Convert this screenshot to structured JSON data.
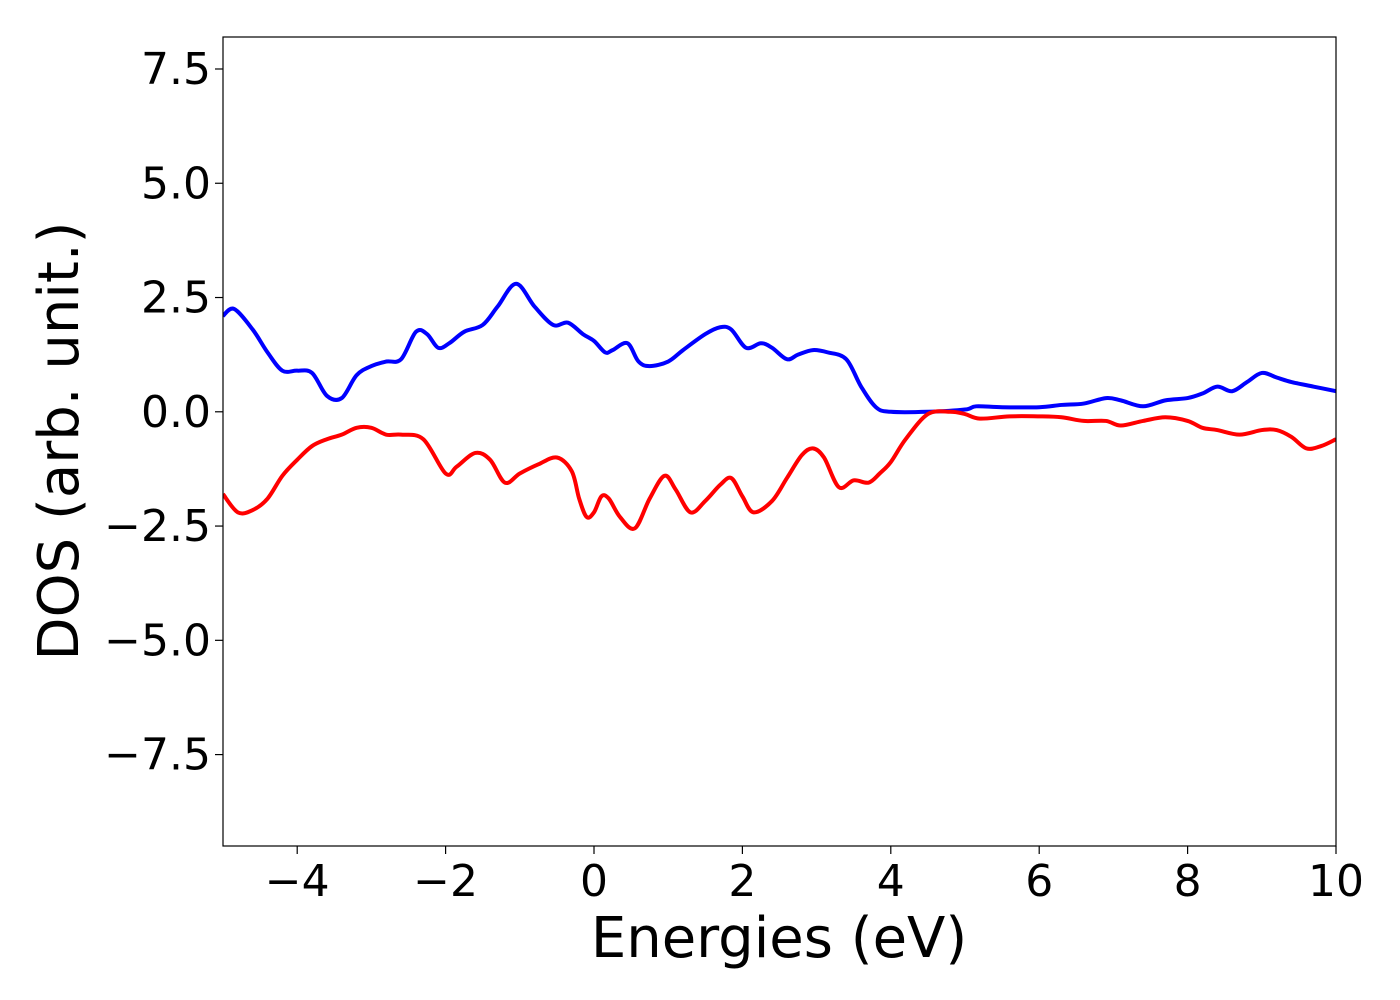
{
  "chart_data": {
    "type": "line",
    "xlabel": "Energies (eV)",
    "ylabel": "DOS (arb. unit.)",
    "xlim": [
      -5,
      10
    ],
    "ylim": [
      -9.5,
      8.2
    ],
    "xticks": [
      -4,
      -2,
      0,
      2,
      4,
      6,
      8,
      10
    ],
    "xtick_labels": [
      "−4",
      "−2",
      "0",
      "2",
      "4",
      "6",
      "8",
      "10"
    ],
    "yticks": [
      7.5,
      5.0,
      2.5,
      0.0,
      -2.5,
      -5.0,
      -7.5
    ],
    "ytick_labels": [
      "7.5",
      "5.0",
      "2.5",
      "0.0",
      "−2.5",
      "−5.0",
      "−7.5"
    ],
    "grid": false,
    "series": [
      {
        "color": "#0000ff",
        "x": [
          -5.0,
          -4.85,
          -4.6,
          -4.4,
          -4.2,
          -4.0,
          -3.8,
          -3.6,
          -3.4,
          -3.2,
          -3.0,
          -2.8,
          -2.6,
          -2.4,
          -2.25,
          -2.1,
          -1.95,
          -1.75,
          -1.5,
          -1.3,
          -1.05,
          -0.8,
          -0.55,
          -0.35,
          -0.15,
          0.0,
          0.15,
          0.25,
          0.45,
          0.6,
          0.75,
          1.0,
          1.2,
          1.5,
          1.7,
          1.85,
          2.05,
          2.25,
          2.4,
          2.6,
          2.75,
          2.95,
          3.15,
          3.4,
          3.6,
          3.8,
          4.0,
          4.5,
          5.0,
          5.15,
          5.5,
          6.0,
          6.3,
          6.6,
          6.9,
          7.1,
          7.4,
          7.7,
          8.0,
          8.2,
          8.4,
          8.6,
          8.8,
          9.0,
          9.2,
          9.4,
          9.7,
          10.0
        ],
        "y": [
          2.1,
          2.25,
          1.8,
          1.3,
          0.9,
          0.9,
          0.85,
          0.35,
          0.3,
          0.8,
          1.0,
          1.1,
          1.15,
          1.75,
          1.7,
          1.4,
          1.5,
          1.75,
          1.9,
          2.3,
          2.8,
          2.3,
          1.9,
          1.95,
          1.7,
          1.55,
          1.3,
          1.35,
          1.5,
          1.1,
          1.0,
          1.1,
          1.35,
          1.7,
          1.85,
          1.8,
          1.4,
          1.5,
          1.4,
          1.15,
          1.25,
          1.35,
          1.3,
          1.15,
          0.55,
          0.1,
          0.0,
          0.0,
          0.05,
          0.12,
          0.1,
          0.1,
          0.15,
          0.18,
          0.3,
          0.25,
          0.12,
          0.25,
          0.3,
          0.4,
          0.55,
          0.45,
          0.65,
          0.85,
          0.75,
          0.65,
          0.55,
          0.45
        ]
      },
      {
        "color": "#ff0000",
        "x": [
          -5.0,
          -4.8,
          -4.6,
          -4.4,
          -4.2,
          -4.0,
          -3.8,
          -3.6,
          -3.4,
          -3.2,
          -3.0,
          -2.8,
          -2.6,
          -2.3,
          -2.0,
          -1.85,
          -1.6,
          -1.4,
          -1.2,
          -1.0,
          -0.75,
          -0.5,
          -0.3,
          -0.2,
          -0.1,
          0.0,
          0.1,
          0.2,
          0.35,
          0.55,
          0.75,
          0.95,
          1.1,
          1.3,
          1.5,
          1.7,
          1.85,
          2.0,
          2.15,
          2.4,
          2.6,
          2.8,
          2.95,
          3.1,
          3.3,
          3.5,
          3.7,
          3.85,
          4.0,
          4.2,
          4.5,
          4.8,
          5.0,
          5.2,
          5.6,
          6.0,
          6.3,
          6.6,
          6.9,
          7.1,
          7.4,
          7.7,
          8.0,
          8.2,
          8.4,
          8.7,
          9.0,
          9.2,
          9.4,
          9.6,
          9.8,
          10.0
        ],
        "y": [
          -1.8,
          -2.2,
          -2.15,
          -1.9,
          -1.4,
          -1.05,
          -0.75,
          -0.6,
          -0.5,
          -0.35,
          -0.35,
          -0.5,
          -0.5,
          -0.6,
          -1.35,
          -1.2,
          -0.9,
          -1.05,
          -1.55,
          -1.35,
          -1.15,
          -1.0,
          -1.3,
          -1.9,
          -2.3,
          -2.2,
          -1.85,
          -1.9,
          -2.3,
          -2.55,
          -1.9,
          -1.4,
          -1.7,
          -2.2,
          -1.95,
          -1.6,
          -1.45,
          -1.85,
          -2.2,
          -1.95,
          -1.45,
          -0.95,
          -0.8,
          -1.0,
          -1.65,
          -1.5,
          -1.55,
          -1.35,
          -1.1,
          -0.6,
          -0.05,
          0.0,
          -0.05,
          -0.15,
          -0.1,
          -0.1,
          -0.12,
          -0.2,
          -0.2,
          -0.3,
          -0.2,
          -0.12,
          -0.2,
          -0.35,
          -0.4,
          -0.5,
          -0.4,
          -0.4,
          -0.55,
          -0.8,
          -0.75,
          -0.6
        ]
      }
    ]
  }
}
